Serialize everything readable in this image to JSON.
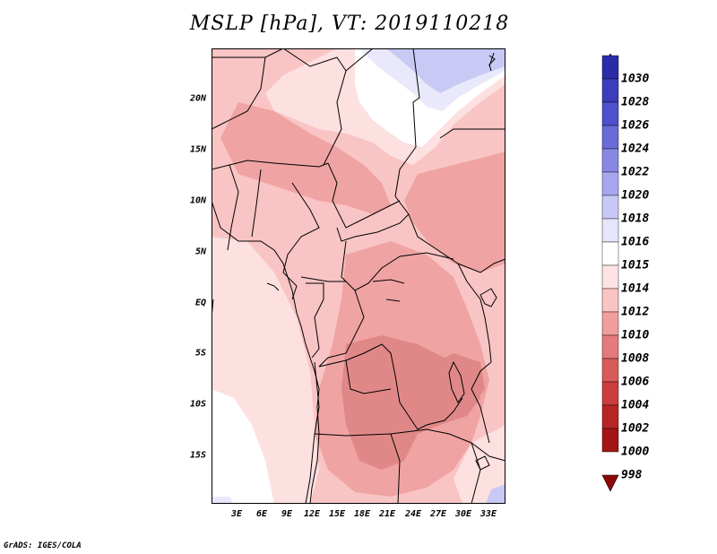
{
  "title": "MSLP [hPa], VT: 2019110218",
  "footer": "GrADS: IGES/COLA",
  "lat_labels": [
    "20N",
    "15N",
    "10N",
    "5N",
    "EQ",
    "5S",
    "10S",
    "15S"
  ],
  "lon_labels": [
    "3E",
    "6E",
    "9E",
    "12E",
    "15E",
    "18E",
    "21E",
    "24E",
    "27E",
    "30E",
    "33E"
  ],
  "legend": {
    "levels": [
      "1030",
      "1028",
      "1026",
      "1024",
      "1022",
      "1020",
      "1018",
      "1016",
      "1015",
      "1014",
      "1012",
      "1010",
      "1008",
      "1006",
      "1004",
      "1002",
      "1000",
      "998"
    ],
    "colors": [
      "#1e1c8c",
      "#2b2ba8",
      "#3c3cbc",
      "#5050cc",
      "#6a6ad8",
      "#8888e4",
      "#a7a7ef",
      "#c8c8f6",
      "#e6e6fb",
      "#ffffff",
      "#fde3e3",
      "#f9c4c4",
      "#f19e9e",
      "#e57a7a",
      "#d95a5a",
      "#cc3c3c",
      "#b82424",
      "#a31414",
      "#8e0a0a"
    ]
  },
  "map_colors": {
    "p1012": "#fde0e0",
    "p1010": "#f9c4c4",
    "p1008": "#f0a3a3",
    "p1006": "#e08888",
    "p1015": "#e9e9fb",
    "p1016": "#c9c9f5",
    "p1014": "#ffffff"
  }
}
